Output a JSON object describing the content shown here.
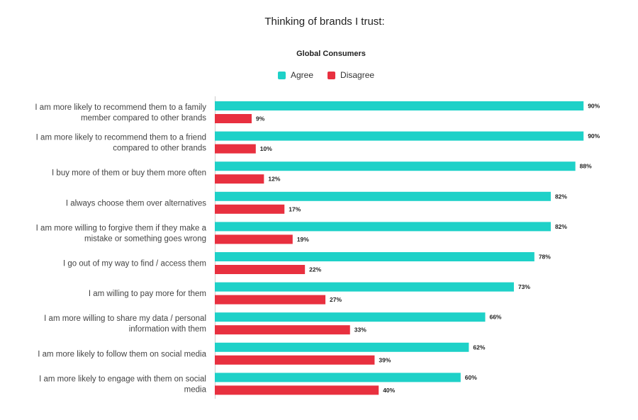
{
  "chart_data": {
    "type": "bar",
    "orientation": "horizontal",
    "title": "Thinking of brands I trust:",
    "subtitle": "Global Consumers",
    "legend_position": "top-center",
    "grid": false,
    "xlim": [
      0,
      100
    ],
    "categories": [
      [
        "I am more likely to recommend them to a family",
        "member compared to other brands"
      ],
      [
        "I am more likely to recommend them to a friend",
        "compared to other brands"
      ],
      [
        "I buy more of them or buy them more often"
      ],
      [
        "I always choose them over alternatives"
      ],
      [
        "I am more willing to forgive them if they make a",
        "mistake or something goes wrong"
      ],
      [
        "I go out of my way to find / access them"
      ],
      [
        "I am willing to pay more for them"
      ],
      [
        "I am more willing to share my data / personal",
        "information with them"
      ],
      [
        "I am more likely to follow them on social media"
      ],
      [
        "I am more likely to engage with them on social",
        "media"
      ]
    ],
    "series": [
      {
        "name": "Agree",
        "color": "#1ed1c8",
        "values": [
          90,
          90,
          88,
          82,
          82,
          78,
          73,
          66,
          62,
          60
        ]
      },
      {
        "name": "Disagree",
        "color": "#e8303f",
        "values": [
          9,
          10,
          12,
          17,
          19,
          22,
          27,
          33,
          39,
          40
        ]
      }
    ],
    "value_suffix": "%"
  }
}
